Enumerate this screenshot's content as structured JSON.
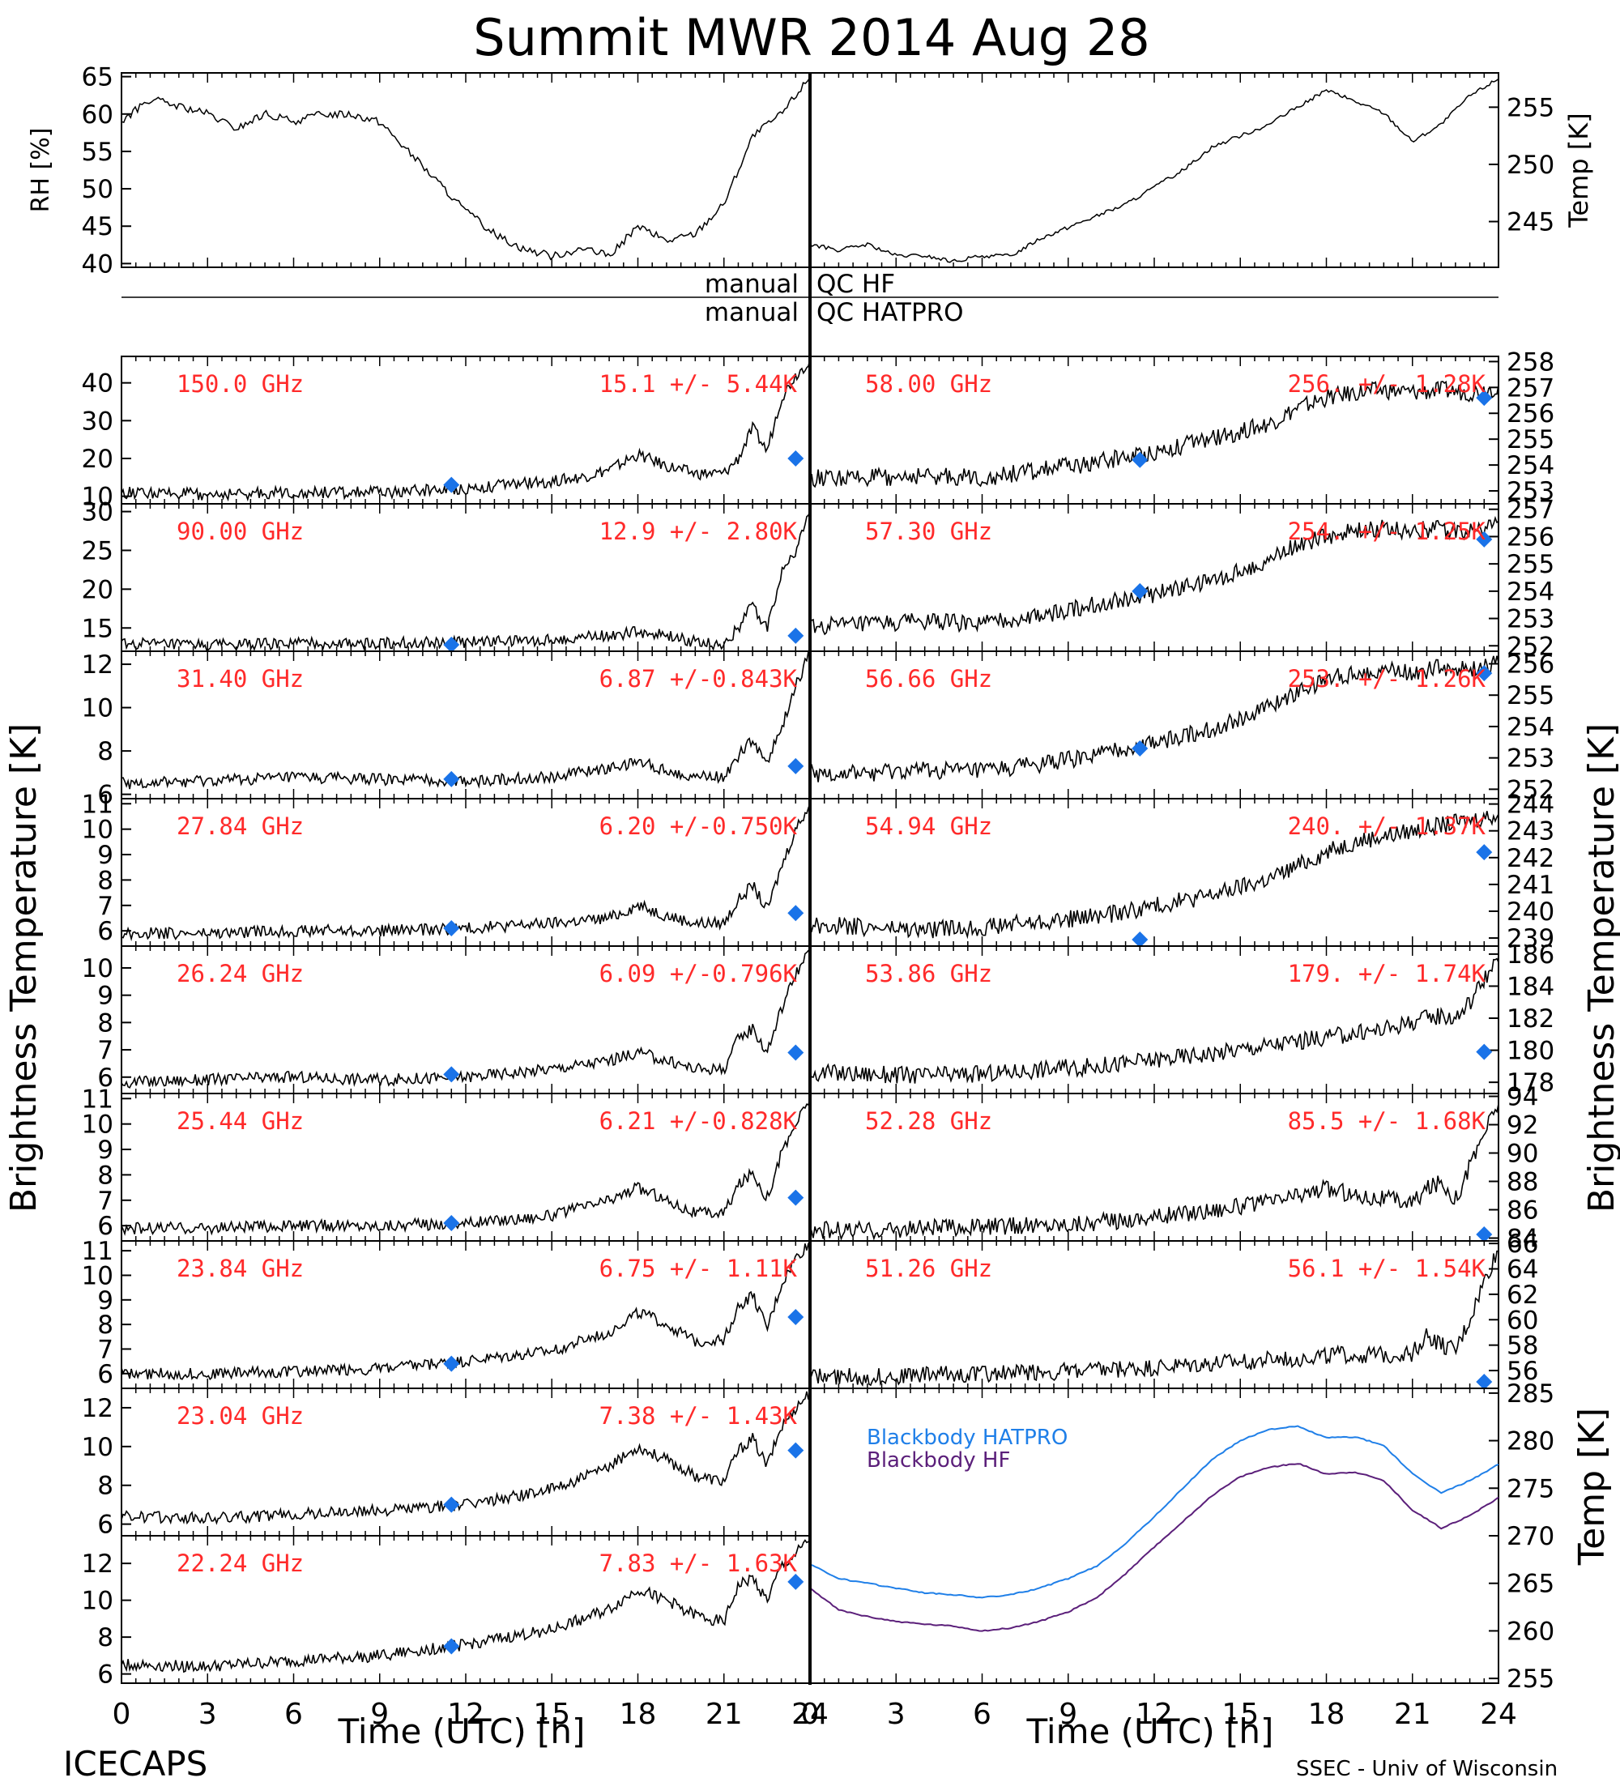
{
  "title": "Summit MWR 2014 Aug 28",
  "footer_left": "ICECAPS",
  "footer_right": "SSEC - Univ of Wisconsin",
  "xlabel": "Time (UTC) [h]",
  "left_ylabel": "Brightness Temperature [K]",
  "right_ylabel": "Brightness Temperature [K]",
  "qc_labels": {
    "hf_left": "manual",
    "hf_right": "QC HF",
    "hatpro_left": "manual",
    "hatpro_right": "QC HATPRO"
  },
  "colors": {
    "status": "#ff2a2a",
    "sounding": "#1a73e8",
    "bb_hatpro": "#1f7fe8",
    "bb_hf": "#5b1f7a",
    "trace": "#000000"
  },
  "chart_data": {
    "top_left": {
      "type": "line",
      "ylabel": "RH [%]",
      "ylim": [
        39.5,
        65.5
      ],
      "yticks": [
        "40",
        "45",
        "50",
        "55",
        "60",
        "65"
      ],
      "x": [
        0,
        1,
        2,
        3,
        4,
        5,
        6,
        7,
        8,
        9,
        10,
        11,
        12,
        13,
        14,
        15,
        16,
        17,
        18,
        19,
        20,
        21,
        22,
        23,
        24
      ],
      "values": [
        59,
        62,
        61,
        60,
        58,
        60,
        59,
        60,
        60,
        59,
        55,
        51,
        47,
        44,
        42,
        41,
        42,
        41,
        45,
        43,
        44,
        48,
        57,
        60,
        65
      ]
    },
    "top_right": {
      "type": "line",
      "ylabel": "Temp [K]",
      "ylim": [
        241,
        258
      ],
      "yticks": [
        "245",
        "250",
        "255"
      ],
      "x": [
        0,
        1,
        2,
        3,
        4,
        5,
        6,
        7,
        8,
        9,
        10,
        11,
        12,
        13,
        14,
        15,
        16,
        17,
        18,
        19,
        20,
        21,
        22,
        23,
        24
      ],
      "values": [
        243,
        242.5,
        243,
        242,
        242,
        241.5,
        242,
        242,
        243.5,
        244.5,
        245.5,
        246.5,
        248,
        249.5,
        251.5,
        252.5,
        253.5,
        255,
        256.5,
        255.5,
        254.5,
        252,
        253.5,
        256,
        257.5
      ]
    },
    "left_panels": [
      {
        "label": "150.0 GHz",
        "stat": "15.1 +/-  5.44K",
        "ylim": [
          8,
          47
        ],
        "yticks": [
          "10",
          "20",
          "30",
          "40"
        ],
        "x": [
          0,
          3,
          6,
          9,
          12,
          15,
          16,
          17,
          18,
          19,
          20,
          21,
          21.5,
          22,
          22.5,
          23,
          23.5,
          24
        ],
        "values": [
          11,
          10.5,
          11,
          11,
          12,
          14,
          15,
          17,
          21,
          18,
          16,
          16,
          20,
          28,
          22,
          36,
          42,
          46
        ],
        "sounding": [
          [
            11.5,
            13
          ],
          [
            23.5,
            20
          ]
        ]
      },
      {
        "label": "90.00 GHz",
        "stat": "12.9 +/-  2.80K",
        "ylim": [
          12,
          31
        ],
        "yticks": [
          "15",
          "20",
          "25",
          "30"
        ],
        "x": [
          0,
          3,
          6,
          9,
          12,
          15,
          17,
          18,
          19,
          20,
          21,
          21.5,
          22,
          22.5,
          23,
          23.5,
          24
        ],
        "values": [
          13,
          12.8,
          13,
          13,
          13.2,
          13.5,
          14,
          14.5,
          14,
          13.2,
          12.8,
          15,
          18,
          15,
          22,
          25,
          30
        ],
        "sounding": [
          [
            11.5,
            12.8
          ],
          [
            23.5,
            14
          ]
        ]
      },
      {
        "label": "31.40 GHz",
        "stat": "6.87 +/-0.843K",
        "ylim": [
          5.8,
          12.6
        ],
        "yticks": [
          "6",
          "8",
          "10",
          "12"
        ],
        "x": [
          0,
          3,
          6,
          9,
          12,
          15,
          17,
          18,
          19,
          20,
          21,
          21.5,
          22,
          22.5,
          23,
          23.5,
          24
        ],
        "values": [
          6.5,
          6.6,
          6.8,
          6.7,
          6.6,
          6.8,
          7.2,
          7.5,
          7.1,
          6.8,
          6.8,
          7.8,
          8.5,
          7.5,
          9,
          11,
          12.5
        ],
        "sounding": [
          [
            11.5,
            6.7
          ],
          [
            23.5,
            7.3
          ]
        ]
      },
      {
        "label": "27.84 GHz",
        "stat": "6.20 +/-0.750K",
        "ylim": [
          5.4,
          11.2
        ],
        "yticks": [
          "6",
          "7",
          "8",
          "9",
          "10",
          "11"
        ],
        "x": [
          0,
          3,
          6,
          9,
          12,
          15,
          17,
          18,
          19,
          20,
          21,
          21.5,
          22,
          22.5,
          23,
          23.5,
          24
        ],
        "values": [
          5.9,
          5.9,
          6,
          6,
          6.1,
          6.3,
          6.5,
          7,
          6.6,
          6.3,
          6.3,
          7.2,
          7.8,
          6.8,
          8.5,
          10,
          11
        ],
        "sounding": [
          [
            11.5,
            6.1
          ],
          [
            23.5,
            6.7
          ]
        ]
      },
      {
        "label": "26.24 GHz",
        "stat": "6.09 +/-0.796K",
        "ylim": [
          5.4,
          10.8
        ],
        "yticks": [
          "6",
          "7",
          "8",
          "9",
          "10"
        ],
        "x": [
          0,
          3,
          6,
          9,
          12,
          15,
          17,
          18,
          19,
          20,
          21,
          21.5,
          22,
          22.5,
          23,
          23.5,
          24
        ],
        "values": [
          5.8,
          5.9,
          6,
          5.9,
          6,
          6.3,
          6.6,
          6.9,
          6.6,
          6.3,
          6.3,
          7.4,
          7.8,
          6.9,
          8.5,
          9.8,
          10.6
        ],
        "sounding": [
          [
            11.5,
            6.1
          ],
          [
            23.5,
            6.9
          ]
        ]
      },
      {
        "label": "25.44 GHz",
        "stat": "6.21 +/-0.828K",
        "ylim": [
          5.4,
          11.2
        ],
        "yticks": [
          "6",
          "7",
          "8",
          "9",
          "10",
          "11"
        ],
        "x": [
          0,
          3,
          6,
          9,
          12,
          15,
          17,
          18,
          19,
          20,
          21,
          21.5,
          22,
          22.5,
          23,
          23.5,
          24
        ],
        "values": [
          5.9,
          5.9,
          6,
          6,
          6.1,
          6.4,
          7,
          7.5,
          7,
          6.5,
          6.5,
          7.6,
          8.1,
          7.1,
          8.8,
          10,
          11
        ],
        "sounding": [
          [
            11.5,
            6.1
          ],
          [
            23.5,
            7.1
          ]
        ]
      },
      {
        "label": "23.84 GHz",
        "stat": "6.75 +/- 1.11K",
        "ylim": [
          5.4,
          11.4
        ],
        "yticks": [
          "6",
          "7",
          "8",
          "9",
          "10",
          "11"
        ],
        "x": [
          0,
          3,
          6,
          9,
          12,
          15,
          17,
          18,
          19,
          20,
          21,
          21.5,
          22,
          22.5,
          23,
          23.5,
          24
        ],
        "values": [
          6,
          6,
          6.1,
          6.2,
          6.5,
          6.9,
          7.7,
          8.5,
          8,
          7.3,
          7.4,
          8.7,
          9.2,
          7.8,
          9.6,
          10.7,
          11.3
        ],
        "sounding": [
          [
            11.5,
            6.4
          ],
          [
            23.5,
            8.3
          ]
        ]
      },
      {
        "label": "23.04 GHz",
        "stat": "7.38 +/- 1.43K",
        "ylim": [
          5.4,
          13
        ],
        "yticks": [
          "6",
          "8",
          "10",
          "12"
        ],
        "x": [
          0,
          3,
          6,
          9,
          12,
          15,
          17,
          18,
          19,
          20,
          21,
          21.5,
          22,
          22.5,
          23,
          23.5,
          24
        ],
        "values": [
          6.4,
          6.3,
          6.5,
          6.7,
          7,
          7.8,
          8.9,
          10,
          9.3,
          8.5,
          8.2,
          9.8,
          10.4,
          9,
          11,
          12,
          12.8
        ],
        "sounding": [
          [
            11.5,
            7
          ],
          [
            23.5,
            9.8
          ]
        ]
      },
      {
        "label": "22.24 GHz",
        "stat": "7.83 +/- 1.63K",
        "ylim": [
          5.5,
          13.5
        ],
        "yticks": [
          "6",
          "8",
          "10",
          "12"
        ],
        "x": [
          0,
          3,
          6,
          9,
          12,
          15,
          17,
          18,
          19,
          20,
          21,
          21.5,
          22,
          22.5,
          23,
          23.5,
          24
        ],
        "values": [
          6.5,
          6.4,
          6.7,
          7,
          7.6,
          8.4,
          9.5,
          10.6,
          10,
          9.2,
          8.8,
          10.8,
          11.2,
          10,
          11.8,
          12.5,
          13.3
        ],
        "sounding": [
          [
            11.5,
            7.5
          ],
          [
            23.5,
            11
          ]
        ]
      }
    ],
    "right_panels": [
      {
        "label": "58.00 GHz",
        "stat": "256. +/- 1.28K",
        "ylim": [
          252.5,
          258.2
        ],
        "yticks": [
          "253",
          "254",
          "255",
          "256",
          "257",
          "258"
        ],
        "x": [
          0,
          2,
          4,
          6,
          8,
          10,
          12,
          14,
          16,
          17,
          18,
          19,
          20,
          21,
          22,
          23,
          24
        ],
        "values": [
          253.5,
          253.5,
          253.6,
          253.5,
          253.8,
          254.1,
          254.5,
          255,
          255.6,
          256.2,
          256.6,
          256.8,
          256.9,
          256.8,
          256.9,
          256.8,
          257
        ],
        "sounding": [
          [
            11.5,
            254.2
          ],
          [
            23.5,
            256.6
          ]
        ]
      },
      {
        "label": "57.30 GHz",
        "stat": "254. +/- 1.25K",
        "ylim": [
          251.8,
          257.2
        ],
        "yticks": [
          "252",
          "253",
          "254",
          "255",
          "256",
          "257"
        ],
        "x": [
          0,
          2,
          4,
          6,
          8,
          10,
          12,
          14,
          16,
          17,
          18,
          19,
          20,
          21,
          22,
          23,
          24
        ],
        "values": [
          252.7,
          252.8,
          252.9,
          252.8,
          253.1,
          253.5,
          253.9,
          254.4,
          255.1,
          255.7,
          256,
          256.2,
          256.3,
          256.2,
          256.3,
          256.2,
          256.5
        ],
        "sounding": [
          [
            11.5,
            254
          ],
          [
            23.5,
            255.9
          ]
        ]
      },
      {
        "label": "56.66 GHz",
        "stat": "253. +/- 1.26K",
        "ylim": [
          251.7,
          256.4
        ],
        "yticks": [
          "252",
          "253",
          "254",
          "255",
          "256"
        ],
        "x": [
          0,
          2,
          4,
          6,
          8,
          10,
          12,
          14,
          16,
          17,
          18,
          19,
          20,
          21,
          22,
          23,
          24
        ],
        "values": [
          252.5,
          252.5,
          252.6,
          252.6,
          252.8,
          253.1,
          253.5,
          253.9,
          254.6,
          255.1,
          255.5,
          255.7,
          255.8,
          255.7,
          255.9,
          255.8,
          256
        ],
        "sounding": [
          [
            11.5,
            253.3
          ],
          [
            23.5,
            255.7
          ]
        ]
      },
      {
        "label": "54.94 GHz",
        "stat": "240. +/- 1.37K",
        "ylim": [
          238.7,
          244.2
        ],
        "yticks": [
          "239",
          "240",
          "241",
          "242",
          "243",
          "244"
        ],
        "x": [
          0,
          2,
          4,
          6,
          8,
          10,
          12,
          14,
          16,
          17,
          18,
          19,
          20,
          21,
          22,
          23,
          24
        ],
        "values": [
          239.5,
          239.4,
          239.3,
          239.4,
          239.6,
          239.8,
          240.2,
          240.6,
          241.2,
          241.7,
          242.2,
          242.6,
          242.8,
          243,
          243.2,
          243.4,
          243.6
        ],
        "sounding": [
          [
            11.5,
            238.9
          ],
          [
            23.5,
            242.2
          ]
        ]
      },
      {
        "label": "53.86 GHz",
        "stat": "179. +/- 1.74K",
        "ylim": [
          177.3,
          186.5
        ],
        "yticks": [
          "178",
          "180",
          "182",
          "184",
          "186"
        ],
        "x": [
          0,
          2,
          4,
          6,
          8,
          10,
          12,
          14,
          16,
          18,
          20,
          21,
          22,
          22.5,
          23,
          23.5,
          24
        ],
        "values": [
          178.6,
          178.5,
          178.4,
          178.5,
          178.8,
          179,
          179.4,
          179.8,
          180.3,
          180.8,
          181.3,
          181.8,
          182.2,
          182,
          183,
          184.5,
          185.5
        ],
        "sounding": [
          [
            23.5,
            179.9
          ]
        ]
      },
      {
        "label": "52.28 GHz",
        "stat": "85.5 +/- 1.68K",
        "ylim": [
          83.8,
          94.2
        ],
        "yticks": [
          "84",
          "86",
          "88",
          "90",
          "92",
          "94"
        ],
        "x": [
          0,
          2,
          4,
          6,
          8,
          10,
          12,
          14,
          16,
          17,
          18,
          19,
          20,
          21,
          21.5,
          22,
          22.5,
          23,
          23.5,
          24
        ],
        "values": [
          84.6,
          84.5,
          84.7,
          84.8,
          84.9,
          85.1,
          85.5,
          86,
          86.5,
          87,
          87.5,
          87,
          86.8,
          86.5,
          87.5,
          88,
          86.8,
          89,
          91.5,
          93.5
        ],
        "sounding": [
          [
            23.5,
            83.7
          ]
        ]
      },
      {
        "label": "51.26 GHz",
        "stat": "56.1 +/- 1.54K",
        "ylim": [
          54.6,
          66.2
        ],
        "yticks": [
          "56",
          "58",
          "60",
          "62",
          "64",
          "66"
        ],
        "x": [
          0,
          2,
          4,
          6,
          8,
          10,
          12,
          14,
          16,
          18,
          20,
          21,
          21.5,
          22,
          22.5,
          23,
          23.5,
          24
        ],
        "values": [
          55.6,
          55.5,
          55.7,
          55.8,
          55.9,
          56,
          56.2,
          56.5,
          56.8,
          57.2,
          57.2,
          57.4,
          58.8,
          58,
          57.5,
          60,
          63,
          65.5
        ],
        "sounding": [
          [
            23.5,
            54.7
          ]
        ]
      }
    ],
    "bb_panel": {
      "type": "line",
      "ylabel": "Temp [K]",
      "ylim": [
        254.5,
        285.5
      ],
      "yticks": [
        "255",
        "260",
        "265",
        "270",
        "275",
        "280",
        "285"
      ],
      "x": [
        0,
        1,
        2,
        3,
        4,
        5,
        6,
        7,
        8,
        9,
        10,
        11,
        12,
        13,
        14,
        15,
        16,
        17,
        18,
        19,
        20,
        21,
        22,
        23,
        24
      ],
      "series": [
        {
          "name": "Blackbody HATPRO",
          "values": [
            267,
            265.5,
            265,
            264.5,
            264,
            263.8,
            263.5,
            263.8,
            264.5,
            265.5,
            266.8,
            269.2,
            272,
            275,
            278,
            280,
            281.2,
            281.5,
            280.3,
            280.4,
            279.5,
            276.5,
            274.5,
            275.8,
            277.5
          ]
        },
        {
          "name": "Blackbody HF",
          "values": [
            264.5,
            262.2,
            261.5,
            261,
            260.7,
            260.5,
            260,
            260.3,
            261,
            262,
            263.5,
            266,
            268.8,
            271.5,
            274.2,
            276.2,
            277.2,
            277.6,
            276.5,
            276.7,
            275.8,
            272.7,
            270.8,
            272.1,
            274
          ]
        }
      ]
    },
    "xticks": [
      "0",
      "3",
      "6",
      "9",
      "12",
      "15",
      "18",
      "21",
      "24"
    ]
  }
}
